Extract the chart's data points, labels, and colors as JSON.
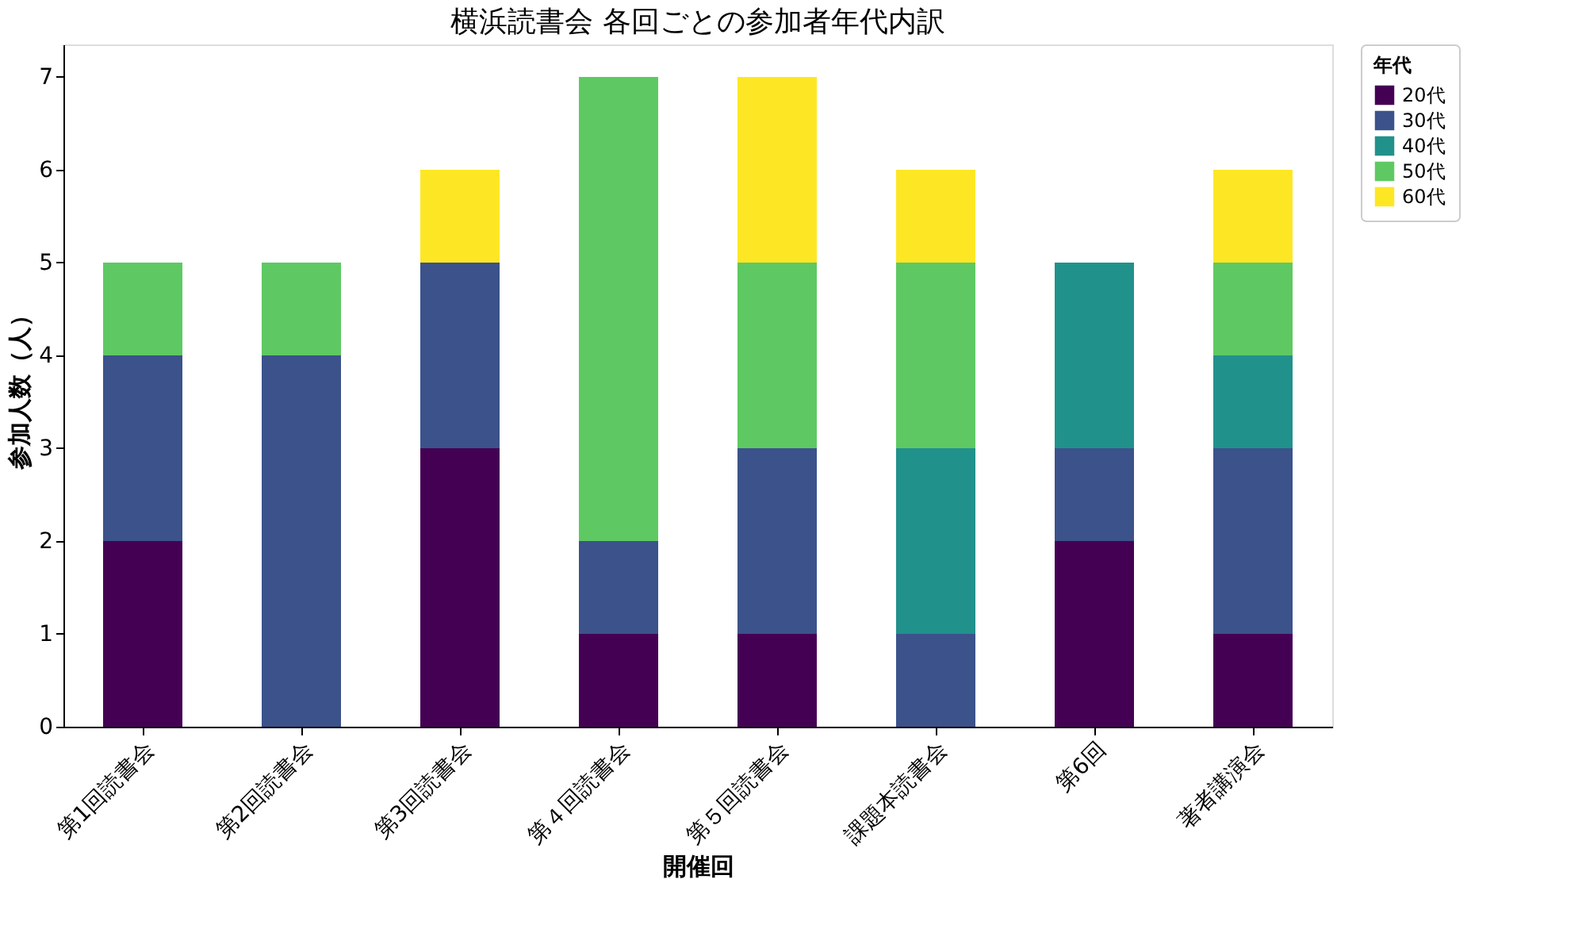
{
  "chart_data": {
    "type": "bar",
    "title": "横浜読書会 各回ごとの参加者年代内訳",
    "xlabel": "開催回",
    "ylabel": "参加人数（人）",
    "legend_title": "年代",
    "categories": [
      "第1回読書会",
      "第2回読書会",
      "第3回読書会",
      "第４回読書会",
      "第５回読書会",
      "課題本読書会",
      "第6回",
      "著者講演会"
    ],
    "series": [
      {
        "name": "20代",
        "color": "#440154",
        "values": [
          2,
          0,
          3,
          1,
          1,
          0,
          2,
          1
        ]
      },
      {
        "name": "30代",
        "color": "#3b528b",
        "values": [
          2,
          4,
          2,
          1,
          2,
          1,
          1,
          2
        ]
      },
      {
        "name": "40代",
        "color": "#21918c",
        "values": [
          0,
          0,
          0,
          0,
          0,
          2,
          2,
          1
        ]
      },
      {
        "name": "50代",
        "color": "#5ec962",
        "values": [
          1,
          1,
          0,
          5,
          2,
          2,
          0,
          1
        ]
      },
      {
        "name": "60代",
        "color": "#fde725",
        "values": [
          0,
          0,
          1,
          0,
          2,
          1,
          0,
          1
        ]
      }
    ],
    "stacked": true,
    "ylim": [
      0,
      7.35
    ],
    "yticks": [
      0,
      1,
      2,
      3,
      4,
      5,
      6,
      7
    ],
    "grid": false,
    "legend": "top right"
  }
}
